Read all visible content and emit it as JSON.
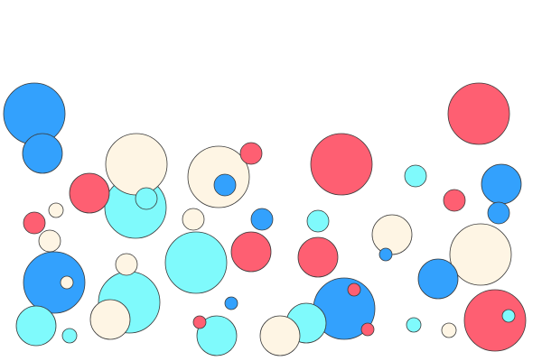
{
  "palette": {
    "blue": "#33a1fd",
    "red": "#fe5f72",
    "cream": "#fef5e4",
    "cyan": "#7ffafc"
  }
}
